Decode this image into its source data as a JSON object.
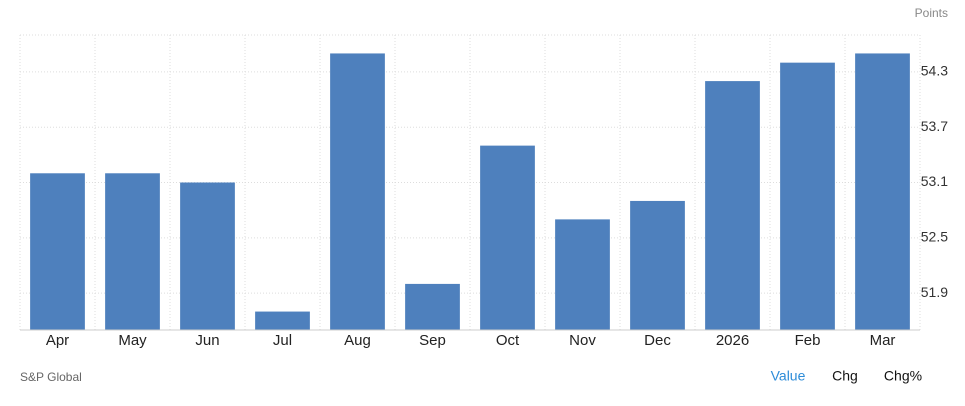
{
  "chart_data": {
    "type": "bar",
    "y_unit": "Points",
    "categories": [
      "Apr",
      "May",
      "Jun",
      "Jul",
      "Aug",
      "Sep",
      "Oct",
      "Nov",
      "Dec",
      "2026",
      "Feb",
      "Mar"
    ],
    "values": [
      53.2,
      53.2,
      53.1,
      51.7,
      54.5,
      52.0,
      53.5,
      52.7,
      52.9,
      54.2,
      54.4,
      54.5
    ],
    "color": "#4e80bd",
    "ylim": [
      51.5,
      54.7
    ],
    "yticks": [
      51.9,
      52.5,
      53.1,
      53.7,
      54.3
    ],
    "grid": true,
    "source": "S&P Global",
    "tabs": [
      "Value",
      "Chg",
      "Chg%"
    ]
  }
}
